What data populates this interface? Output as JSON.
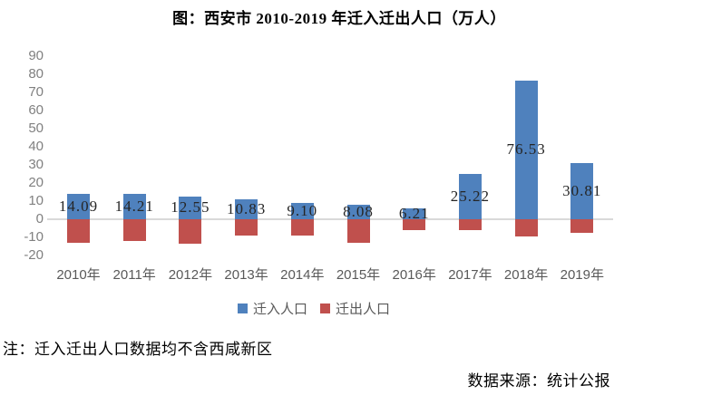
{
  "chart_data": {
    "type": "bar",
    "title": "图：西安市 2010-2019 年迁入迁出人口（万人）",
    "categories": [
      "2010年",
      "2011年",
      "2012年",
      "2013年",
      "2014年",
      "2015年",
      "2016年",
      "2017年",
      "2018年",
      "2019年"
    ],
    "series": [
      {
        "name": "迁入人口",
        "color": "#4F81BD",
        "values": [
          14.09,
          14.21,
          12.55,
          10.83,
          9.1,
          8.08,
          6.21,
          25.22,
          76.53,
          30.81
        ],
        "labels": [
          "14.09",
          "14.21",
          "12.55",
          "10.83",
          "9.10",
          "8.08",
          "6.21",
          "25.22",
          "76.53",
          "30.81"
        ],
        "labels_shown": true
      },
      {
        "name": "迁出人口",
        "color": "#C0504D",
        "values": [
          -13.2,
          -11.8,
          -13.3,
          -9.0,
          -8.8,
          -12.9,
          -5.8,
          -5.8,
          -9.3,
          -7.4
        ],
        "labels_shown": false
      }
    ],
    "ylim": [
      -20,
      90
    ],
    "yticks": [
      90,
      80,
      70,
      60,
      50,
      40,
      30,
      20,
      10,
      0,
      -10,
      -20
    ],
    "grid": "zero-line-only",
    "legend_position": "bottom",
    "axis_label_color": "#808080",
    "zero_line_color": "#D9D9D9",
    "note": "注：迁入迁出人口数据均不含西咸新区",
    "source": "数据来源：统计公报"
  }
}
